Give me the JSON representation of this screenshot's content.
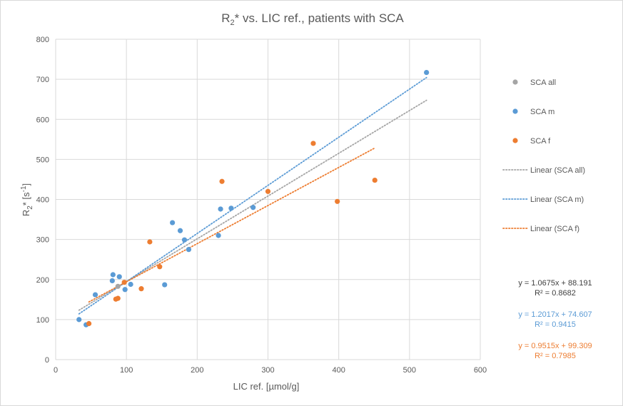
{
  "chart_data": {
    "type": "scatter",
    "title": "R",
    "title_sub": "2",
    "title_rest": "* vs. LIC ref., patients with SCA",
    "xlabel": "LIC ref. [µmol/g]",
    "ylabel_main": "R",
    "ylabel_sub": "2",
    "ylabel_mid": "* [s",
    "ylabel_sup": "-1",
    "ylabel_end": "]",
    "xlim": [
      0,
      600
    ],
    "ylim": [
      0,
      800
    ],
    "xticks": [
      0,
      100,
      200,
      300,
      400,
      500,
      600
    ],
    "yticks": [
      0,
      100,
      200,
      300,
      400,
      500,
      600,
      700,
      800
    ],
    "grid": true,
    "legend_position": "right",
    "colors": {
      "all": "#a5a5a5",
      "m": "#5b9bd5",
      "f": "#ed7d31",
      "grid": "#d9d9d9",
      "text": "#595959"
    },
    "series": [
      {
        "name": "SCA all",
        "kind": "scatter",
        "color": "#a5a5a5",
        "points": [
          [
            88,
            183
          ]
        ]
      },
      {
        "name": "SCA m",
        "kind": "scatter",
        "color": "#5b9bd5",
        "points": [
          [
            33,
            100
          ],
          [
            43,
            87
          ],
          [
            56,
            162
          ],
          [
            80,
            197
          ],
          [
            81,
            212
          ],
          [
            90,
            207
          ],
          [
            98,
            175
          ],
          [
            106,
            188
          ],
          [
            154,
            187
          ],
          [
            165,
            342
          ],
          [
            176,
            322
          ],
          [
            182,
            299
          ],
          [
            188,
            275
          ],
          [
            230,
            310
          ],
          [
            233,
            376
          ],
          [
            248,
            378
          ],
          [
            279,
            380
          ],
          [
            524,
            717
          ]
        ]
      },
      {
        "name": "SCA f",
        "kind": "scatter",
        "color": "#ed7d31",
        "points": [
          [
            47,
            90
          ],
          [
            85,
            151
          ],
          [
            88,
            153
          ],
          [
            97,
            193
          ],
          [
            121,
            177
          ],
          [
            133,
            294
          ],
          [
            147,
            232
          ],
          [
            235,
            445
          ],
          [
            300,
            420
          ],
          [
            364,
            540
          ],
          [
            398,
            395
          ],
          [
            451,
            448
          ]
        ]
      },
      {
        "name": "Linear (SCA all)",
        "kind": "trendline",
        "color": "#a5a5a5",
        "slope": 1.0675,
        "intercept": 88.191,
        "x_range": [
          33,
          524
        ]
      },
      {
        "name": "Linear (SCA m)",
        "kind": "trendline",
        "color": "#5b9bd5",
        "slope": 1.2017,
        "intercept": 74.607,
        "x_range": [
          33,
          524
        ]
      },
      {
        "name": "Linear (SCA f)",
        "kind": "trendline",
        "color": "#ed7d31",
        "slope": 0.9515,
        "intercept": 99.309,
        "x_range": [
          47,
          451
        ]
      }
    ],
    "equations": [
      {
        "line1": "y = 1.0675x + 88.191",
        "line2": "R² = 0.8682",
        "color": "#404040"
      },
      {
        "line1": "y = 1.2017x + 74.607",
        "line2": "R² = 0.9415",
        "color": "#5b9bd5"
      },
      {
        "line1": "y = 0.9515x + 99.309",
        "line2": "R² = 0.7985",
        "color": "#ed7d31"
      }
    ]
  }
}
